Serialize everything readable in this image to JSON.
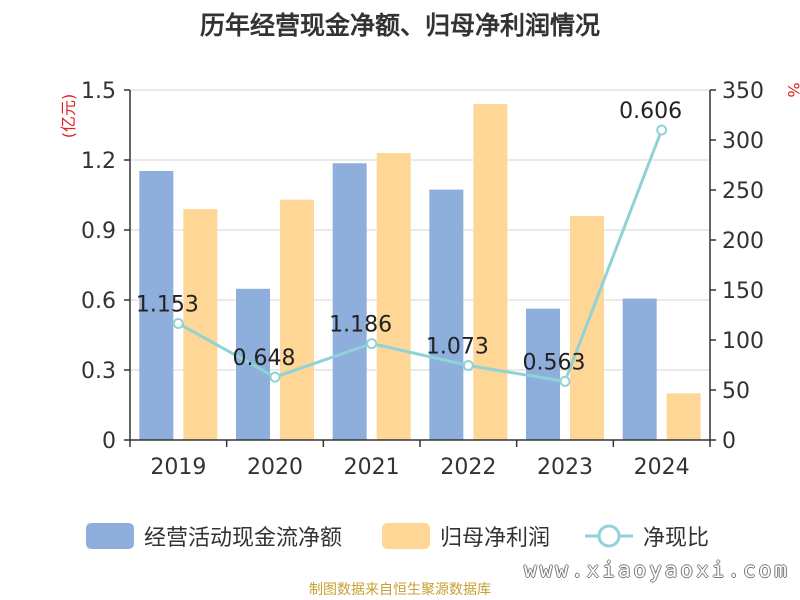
{
  "chart_data": {
    "type": "bar",
    "title": "历年经营现金净额、归母净利润情况",
    "categories": [
      "2019",
      "2020",
      "2021",
      "2022",
      "2023",
      "2024"
    ],
    "series": [
      {
        "name": "经营活动现金流净额",
        "type": "bar",
        "axis": "left",
        "color": "#8eaedb",
        "values": [
          1.153,
          0.648,
          1.186,
          1.073,
          0.563,
          0.606
        ]
      },
      {
        "name": "归母净利润",
        "type": "bar",
        "axis": "left",
        "color": "#fed797",
        "values": [
          0.99,
          1.03,
          1.23,
          1.44,
          0.96,
          0.2
        ]
      },
      {
        "name": "净现比",
        "type": "line",
        "axis": "right",
        "color": "#8fd3d7",
        "values": [
          116.5,
          62.9,
          96.4,
          74.5,
          58.6,
          310
        ]
      }
    ],
    "data_labels": [
      "1.153",
      "0.648",
      "1.186",
      "1.073",
      "0.563",
      "0.606"
    ],
    "y_left": {
      "label": "(亿元)",
      "ylim": [
        0,
        1.5
      ],
      "ticks": [
        "0",
        "0.3",
        "0.6",
        "0.9",
        "1.2",
        "1.5"
      ]
    },
    "y_right": {
      "label": "%",
      "ylim": [
        0,
        350
      ],
      "ticks": [
        "0",
        "50",
        "100",
        "150",
        "200",
        "250",
        "300",
        "350"
      ]
    },
    "grid": true,
    "legend_position": "bottom",
    "axis_label_color": "#e02020"
  },
  "footer": {
    "source": "制图数据来自恒生聚源数据库",
    "watermark": "www.xiaoyaoxi.com"
  }
}
